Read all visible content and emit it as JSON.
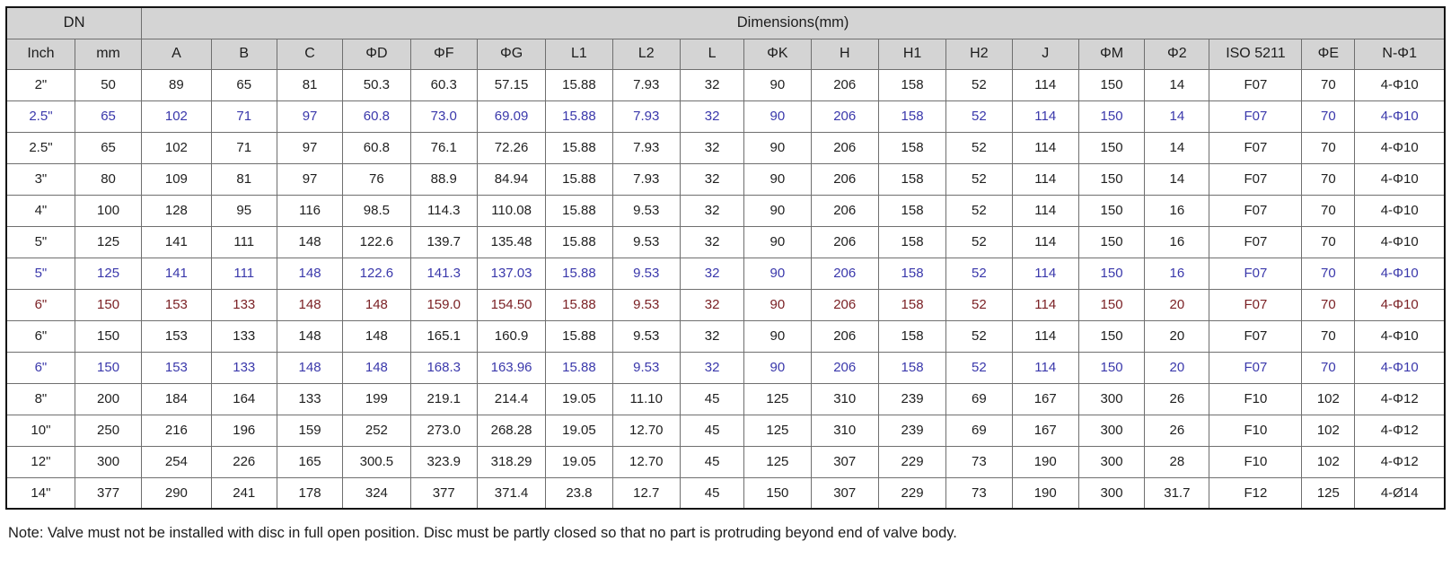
{
  "table": {
    "group_headers": [
      "DN",
      "Dimensions(mm)"
    ],
    "columns": [
      "Inch",
      "mm",
      "A",
      "B",
      "C",
      "ΦD",
      "ΦF",
      "ΦG",
      "L1",
      "L2",
      "L",
      "ΦK",
      "H",
      "H1",
      "H2",
      "J",
      "ΦM",
      "Φ2",
      "ISO 5211",
      "ΦE",
      "N-Φ1"
    ],
    "rows": [
      {
        "color": "black",
        "cells": [
          "2\"",
          "50",
          "89",
          "65",
          "81",
          "50.3",
          "60.3",
          "57.15",
          "15.88",
          "7.93",
          "32",
          "90",
          "206",
          "158",
          "52",
          "114",
          "150",
          "14",
          "F07",
          "70",
          "4-Φ10"
        ]
      },
      {
        "color": "blue",
        "cells": [
          "2.5\"",
          "65",
          "102",
          "71",
          "97",
          "60.8",
          "73.0",
          "69.09",
          "15.88",
          "7.93",
          "32",
          "90",
          "206",
          "158",
          "52",
          "114",
          "150",
          "14",
          "F07",
          "70",
          "4-Φ10"
        ]
      },
      {
        "color": "black",
        "cells": [
          "2.5\"",
          "65",
          "102",
          "71",
          "97",
          "60.8",
          "76.1",
          "72.26",
          "15.88",
          "7.93",
          "32",
          "90",
          "206",
          "158",
          "52",
          "114",
          "150",
          "14",
          "F07",
          "70",
          "4-Φ10"
        ]
      },
      {
        "color": "black",
        "cells": [
          "3\"",
          "80",
          "109",
          "81",
          "97",
          "76",
          "88.9",
          "84.94",
          "15.88",
          "7.93",
          "32",
          "90",
          "206",
          "158",
          "52",
          "114",
          "150",
          "14",
          "F07",
          "70",
          "4-Φ10"
        ]
      },
      {
        "color": "black",
        "cells": [
          "4\"",
          "100",
          "128",
          "95",
          "116",
          "98.5",
          "114.3",
          "110.08",
          "15.88",
          "9.53",
          "32",
          "90",
          "206",
          "158",
          "52",
          "114",
          "150",
          "16",
          "F07",
          "70",
          "4-Φ10"
        ]
      },
      {
        "color": "black",
        "cells": [
          "5\"",
          "125",
          "141",
          "111",
          "148",
          "122.6",
          "139.7",
          "135.48",
          "15.88",
          "9.53",
          "32",
          "90",
          "206",
          "158",
          "52",
          "114",
          "150",
          "16",
          "F07",
          "70",
          "4-Φ10"
        ]
      },
      {
        "color": "blue",
        "cells": [
          "5\"",
          "125",
          "141",
          "111",
          "148",
          "122.6",
          "141.3",
          "137.03",
          "15.88",
          "9.53",
          "32",
          "90",
          "206",
          "158",
          "52",
          "114",
          "150",
          "16",
          "F07",
          "70",
          "4-Φ10"
        ]
      },
      {
        "color": "darkred",
        "cells": [
          "6\"",
          "150",
          "153",
          "133",
          "148",
          "148",
          "159.0",
          "154.50",
          "15.88",
          "9.53",
          "32",
          "90",
          "206",
          "158",
          "52",
          "114",
          "150",
          "20",
          "F07",
          "70",
          "4-Φ10"
        ]
      },
      {
        "color": "black",
        "cells": [
          "6\"",
          "150",
          "153",
          "133",
          "148",
          "148",
          "165.1",
          "160.9",
          "15.88",
          "9.53",
          "32",
          "90",
          "206",
          "158",
          "52",
          "114",
          "150",
          "20",
          "F07",
          "70",
          "4-Φ10"
        ]
      },
      {
        "color": "blue",
        "cells": [
          "6\"",
          "150",
          "153",
          "133",
          "148",
          "148",
          "168.3",
          "163.96",
          "15.88",
          "9.53",
          "32",
          "90",
          "206",
          "158",
          "52",
          "114",
          "150",
          "20",
          "F07",
          "70",
          "4-Φ10"
        ]
      },
      {
        "color": "black",
        "cells": [
          "8\"",
          "200",
          "184",
          "164",
          "133",
          "199",
          "219.1",
          "214.4",
          "19.05",
          "11.10",
          "45",
          "125",
          "310",
          "239",
          "69",
          "167",
          "300",
          "26",
          "F10",
          "102",
          "4-Φ12"
        ]
      },
      {
        "color": "black",
        "cells": [
          "10\"",
          "250",
          "216",
          "196",
          "159",
          "252",
          "273.0",
          "268.28",
          "19.05",
          "12.70",
          "45",
          "125",
          "310",
          "239",
          "69",
          "167",
          "300",
          "26",
          "F10",
          "102",
          "4-Φ12"
        ]
      },
      {
        "color": "black",
        "cells": [
          "12\"",
          "300",
          "254",
          "226",
          "165",
          "300.5",
          "323.9",
          "318.29",
          "19.05",
          "12.70",
          "45",
          "125",
          "307",
          "229",
          "73",
          "190",
          "300",
          "28",
          "F10",
          "102",
          "4-Φ12"
        ]
      },
      {
        "color": "black",
        "cells": [
          "14\"",
          "377",
          "290",
          "241",
          "178",
          "324",
          "377",
          "371.4",
          "23.8",
          "12.7",
          "45",
          "150",
          "307",
          "229",
          "73",
          "190",
          "300",
          "31.7",
          "F12",
          "125",
          "4-Ø14"
        ]
      }
    ]
  },
  "note": "Note: Valve must not be installed with disc in full open position. Disc must be partly closed so that no part is protruding beyond end of valve body.",
  "colors": {
    "text-black": "#1f1f1f",
    "text-blue": "#3a38ab",
    "text-darkred": "#7b2125",
    "header-bg": "#d4d4d4"
  }
}
